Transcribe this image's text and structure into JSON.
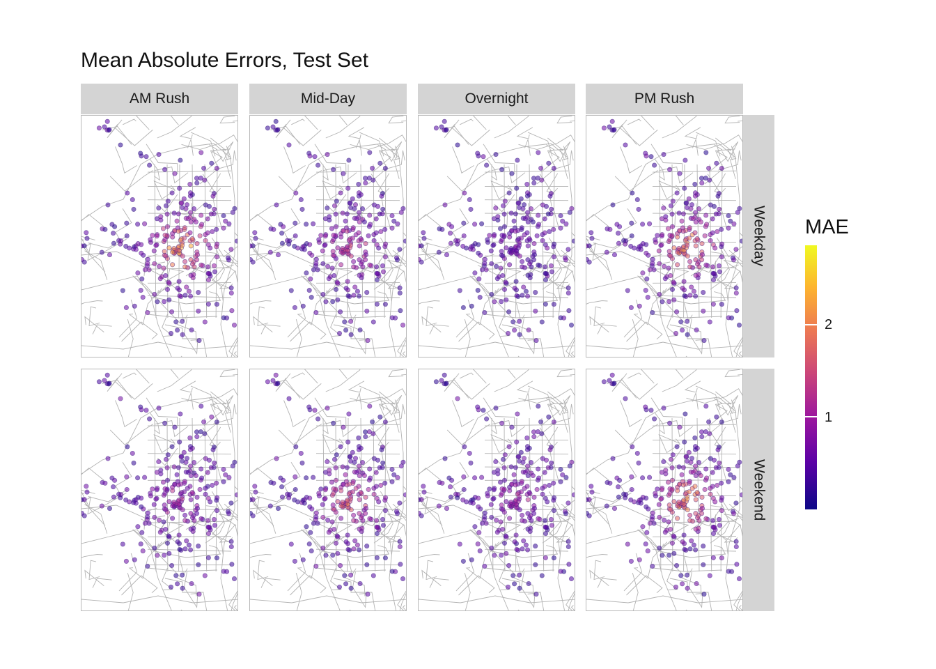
{
  "title": "Mean Absolute Errors, Test Set",
  "columns": [
    "AM Rush",
    "Mid-Day",
    "Overnight",
    "PM Rush"
  ],
  "rows": [
    "Weekday",
    "Weekend"
  ],
  "legend": {
    "title": "MAE",
    "colormap": "plasma",
    "range": [
      0.15,
      2.9
    ],
    "ticks": [
      {
        "value": 1,
        "label": "1"
      },
      {
        "value": 2,
        "label": "2"
      }
    ]
  },
  "map_style": {
    "background": "#ffffff",
    "boundary_color": "#b3b3b3",
    "strip_color": "#d4d4d4"
  },
  "point_style": {
    "opacity": 0.55,
    "edge_color": "#4b2c8a"
  },
  "hotspot_mae_by_panel": {
    "Weekday": {
      "AM Rush": 2.6,
      "Mid-Day": 1.6,
      "Overnight": 0.9,
      "PM Rush": 2.2
    },
    "Weekend": {
      "AM Rush": 1.3,
      "Mid-Day": 1.9,
      "Overnight": 1.2,
      "PM Rush": 2.4
    }
  }
}
